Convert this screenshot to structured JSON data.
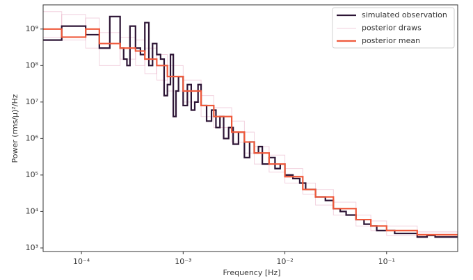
{
  "chart_data": {
    "type": "step",
    "xlabel": "Frequency [Hz]",
    "ylabel": "Power (rms/μ)²/Hz",
    "xscale": "log",
    "yscale": "log",
    "xlim": [
      4.2e-05,
      0.5
    ],
    "ylim": [
      800,
      4600000000.0
    ],
    "xticks": [
      {
        "value": 0.0001,
        "label": "10⁻⁴"
      },
      {
        "value": 0.001,
        "label": "10⁻³"
      },
      {
        "value": 0.01,
        "label": "10⁻²"
      },
      {
        "value": 0.1,
        "label": "10⁻¹"
      }
    ],
    "yticks": [
      {
        "value": 1000,
        "label": "10³"
      },
      {
        "value": 10000,
        "label": "10⁴"
      },
      {
        "value": 100000,
        "label": "10⁵"
      },
      {
        "value": 1000000,
        "label": "10⁶"
      },
      {
        "value": 10000000,
        "label": "10⁷"
      },
      {
        "value": 100000000,
        "label": "10⁸"
      },
      {
        "value": 1000000000,
        "label": "10⁹"
      }
    ],
    "legend": "upper right",
    "series": [
      {
        "name": "simulated observation",
        "color": "#2d1535",
        "x": [
          4.2e-05,
          6.4e-05,
          0.00011,
          0.00015,
          0.00019,
          0.00024,
          0.00026,
          0.00028,
          0.0003,
          0.00034,
          0.00038,
          0.00042,
          0.00046,
          0.0005,
          0.00055,
          0.0006,
          0.00065,
          0.0007,
          0.00075,
          0.0008,
          0.00085,
          0.0009,
          0.001,
          0.0011,
          0.0012,
          0.0013,
          0.0014,
          0.0015,
          0.0017,
          0.0019,
          0.0021,
          0.0023,
          0.0025,
          0.0028,
          0.0031,
          0.0035,
          0.004,
          0.0045,
          0.005,
          0.0055,
          0.006,
          0.007,
          0.008,
          0.009,
          0.01,
          0.012,
          0.014,
          0.016,
          0.018,
          0.02,
          0.025,
          0.03,
          0.035,
          0.04,
          0.05,
          0.06,
          0.07,
          0.08,
          0.1,
          0.12,
          0.15,
          0.2,
          0.25,
          0.3,
          0.4
        ],
        "values": [
          500000000.0,
          1200000000.0,
          700000000.0,
          300000000.0,
          2200000000.0,
          300000000.0,
          150000000.0,
          100000000.0,
          1200000000.0,
          300000000.0,
          200000000.0,
          1500000000.0,
          100000000.0,
          400000000.0,
          200000000.0,
          150000000.0,
          15000000.0,
          30000000.0,
          200000000.0,
          4000000.0,
          20000000.0,
          50000000.0,
          8000000.0,
          30000000.0,
          6000000.0,
          10000000.0,
          30000000.0,
          8000000.0,
          3000000.0,
          6000000.0,
          2000000.0,
          4000000.0,
          1000000.0,
          2000000.0,
          700000.0,
          1500000.0,
          300000.0,
          800000.0,
          400000.0,
          600000.0,
          200000.0,
          300000.0,
          150000.0,
          200000.0,
          100000.0,
          80000.0,
          60000.0,
          40000.0,
          40000.0,
          25000.0,
          20000.0,
          12000.0,
          10000.0,
          8000.0,
          6000.0,
          4500.0,
          4000.0,
          3000.0,
          3000.0,
          2500.0,
          2500.0,
          2000.0,
          2200.0,
          2000.0,
          2000.0
        ]
      },
      {
        "name": "posterior draws",
        "color": "#e29bb8",
        "x": [
          4.2e-05,
          6.4e-05,
          0.00011,
          0.00015,
          0.00024,
          0.00034,
          0.00042,
          0.00055,
          0.0007,
          0.001,
          0.0015,
          0.002,
          0.003,
          0.004,
          0.005,
          0.007,
          0.01,
          0.015,
          0.02,
          0.03,
          0.05,
          0.07,
          0.1,
          0.2
        ],
        "values": [
          [
            3000000000.0,
            500000000.0,
            2000000000.0,
            100000000.0,
            600000000.0,
            100000000.0,
            300000000.0,
            40000000.0,
            100000000.0,
            10000000.0,
            15000000.0,
            2000000.0,
            3000000.0,
            400000.0,
            600000.0,
            120000.0,
            150000.0,
            30000.0,
            40000.0,
            8000.0,
            8000.0,
            3000.0,
            4000.0,
            2800.0
          ],
          [
            600000000.0,
            2500000000.0,
            300000000.0,
            800000000.0,
            150000000.0,
            500000000.0,
            60000000.0,
            200000000.0,
            20000000.0,
            40000000.0,
            4000000.0,
            7000000.0,
            800000.0,
            1500000.0,
            200000.0,
            350000.0,
            60000.0,
            60000.0,
            15000.0,
            18000.0,
            4000.0,
            5500.0,
            2200.0,
            2600.0
          ]
        ]
      },
      {
        "name": "posterior mean",
        "color": "#ef5a3c",
        "x": [
          4.2e-05,
          6.4e-05,
          0.00011,
          0.00015,
          0.00024,
          0.00034,
          0.00042,
          0.00055,
          0.0007,
          0.001,
          0.0015,
          0.002,
          0.003,
          0.004,
          0.005,
          0.007,
          0.01,
          0.015,
          0.02,
          0.03,
          0.05,
          0.07,
          0.1,
          0.2
        ],
        "values": [
          1000000000.0,
          600000000.0,
          1000000000.0,
          400000000.0,
          300000000.0,
          250000000.0,
          150000000.0,
          100000000.0,
          50000000.0,
          20000000.0,
          8000000.0,
          4000000.0,
          1500000.0,
          800000.0,
          400000.0,
          200000.0,
          90000.0,
          40000.0,
          25000.0,
          12000.0,
          6000.0,
          4000.0,
          3000.0,
          2300.0
        ]
      }
    ]
  }
}
